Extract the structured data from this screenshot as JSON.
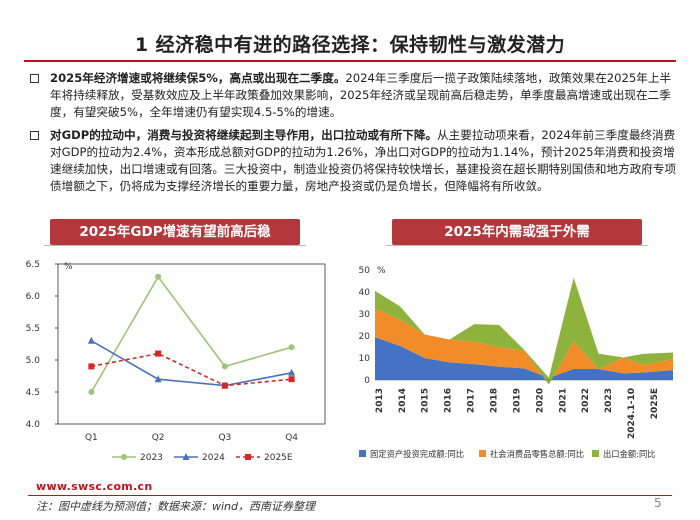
{
  "title": "1 经济稳中有进的路径选择：保持韧性与激发潜力",
  "bullets": [
    {
      "lead": "2025年经济增速或将继续保5%，高点或出现在二季度。",
      "text": "2024年三季度后一揽子政策陆续落地，政策效果在2025年上半年将持续释放，受基数效应及上半年政策叠加效果影响，2025年经济或呈现前高后稳走势，单季度最高增速或出现在二季度，有望突破5%，全年增速仍有望实现4.5-5%的增速。"
    },
    {
      "lead": "对GDP的拉动中，消费与投资将继续起到主导作用，出口拉动或有所下降。",
      "text": "从主要拉动项来看，2024年前三季度最终消费对GDP的拉动为2.4%，资本形成总额对GDP的拉动为1.26%，净出口对GDP的拉动为1.14%，预计2025年消费和投资增速继续加快，出口增速或有回落。三大投资中，制造业投资仍将保持较快增长，基建投资在超长期特别国债和地方政府专项债增额之下，仍将成为支撑经济增长的重要力量，房地产投资或仍是负增长，但降幅将有所收敛。"
    }
  ],
  "left_header": "2025年GDP增速有望前高后稳",
  "right_header": "2025年内需或强于外需",
  "chart_data": [
    {
      "type": "line",
      "title": "2025年GDP增速有望前高后稳",
      "unit": "%",
      "categories": [
        "Q1",
        "Q2",
        "Q3",
        "Q4"
      ],
      "ylim": [
        4.0,
        6.5
      ],
      "yticks": [
        "4.0",
        "4.5",
        "5.0",
        "5.5",
        "6.0",
        "6.5"
      ],
      "series": [
        {
          "name": "2023",
          "values": [
            4.5,
            6.3,
            4.9,
            5.2
          ],
          "color": "#9dc47a",
          "dash": false,
          "marker": "circle"
        },
        {
          "name": "2024",
          "values": [
            5.3,
            4.7,
            4.6,
            4.8
          ],
          "color": "#4a72b8",
          "dash": false,
          "marker": "triangle"
        },
        {
          "name": "2025E",
          "values": [
            4.9,
            5.1,
            4.6,
            4.7
          ],
          "color": "#d62728",
          "dash": true,
          "marker": "square"
        }
      ]
    },
    {
      "type": "area",
      "title": "2025年内需或强于外需",
      "unit": "%",
      "categories": [
        "2013",
        "2014",
        "2015",
        "2016",
        "2017",
        "2018",
        "2019",
        "2020",
        "2021",
        "2022",
        "2023",
        "2024.1-10",
        "2025E"
      ],
      "ylim": [
        0,
        50
      ],
      "yticks": [
        "0",
        "10",
        "20",
        "30",
        "40",
        "50"
      ],
      "x": [
        0,
        1,
        2,
        3,
        4,
        5,
        6,
        7,
        8,
        9,
        10,
        10.8,
        12
      ],
      "series": [
        {
          "name": "固定资产投资完成额:同比",
          "values": [
            19.5,
            15.5,
            10,
            8,
            7.2,
            6,
            5.3,
            1,
            5,
            5,
            3,
            3.4,
            4.5
          ],
          "color": "#4472c4"
        },
        {
          "name": "社会消费品零售总额:同比",
          "values": [
            13,
            12,
            10.7,
            10.4,
            10.2,
            9,
            8,
            -3,
            12.5,
            0,
            7.2,
            3.5,
            5
          ],
          "color": "#f28c28"
        },
        {
          "name": "出口金额:同比",
          "values": [
            8,
            6,
            0,
            0,
            8,
            10,
            0.5,
            3,
            29,
            7,
            0,
            5,
            3
          ],
          "color": "#8db33c"
        }
      ]
    }
  ],
  "footer": {
    "website": "www.swsc.com.cn",
    "note": "注：图中虚线为预测值；数据来源：wind，西南证券整理",
    "page": "5"
  },
  "colors": {
    "accent_red": "#c0121e",
    "header_red": "#b4383b"
  }
}
